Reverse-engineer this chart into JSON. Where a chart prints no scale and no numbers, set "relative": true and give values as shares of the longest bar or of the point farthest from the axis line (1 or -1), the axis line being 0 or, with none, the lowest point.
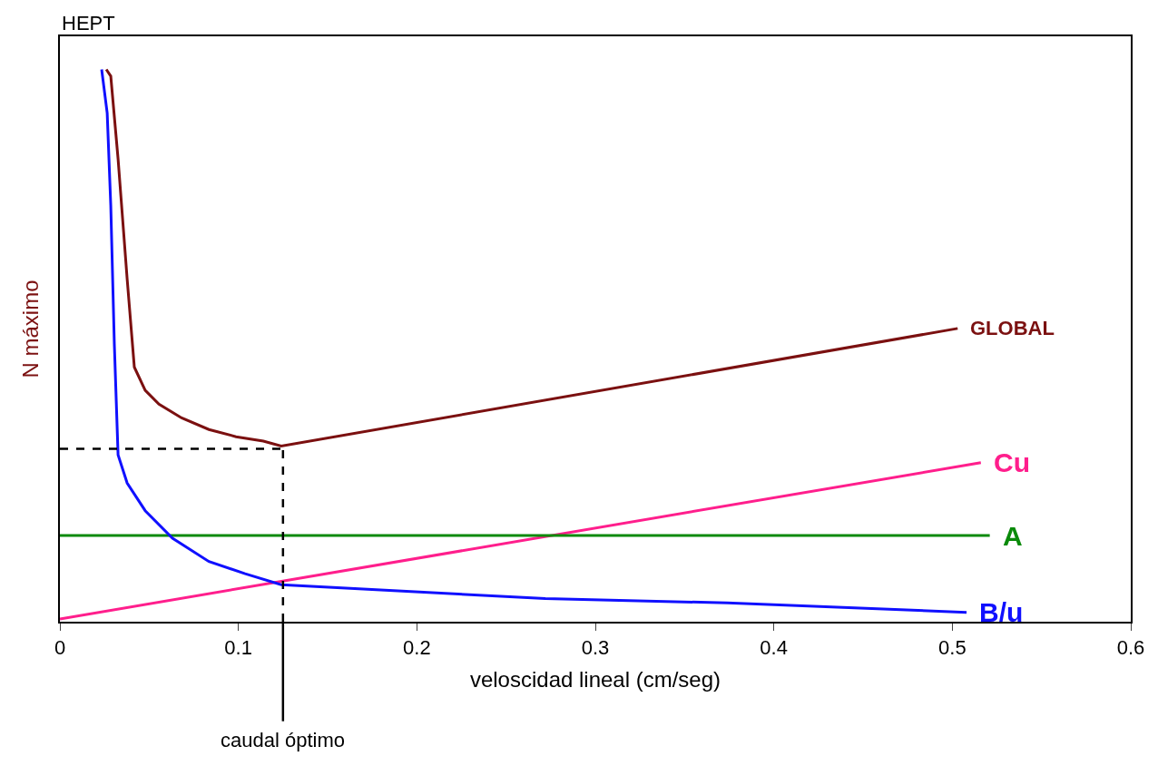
{
  "chart_data": {
    "type": "line",
    "relative": true,
    "xlabel": "veloscidad lineal (cm/seg)",
    "ylabel": "N máximo",
    "xlim": [
      0,
      0.6
    ],
    "xticks": [
      0,
      0.1,
      0.2,
      0.3,
      0.4,
      0.5,
      0.6
    ],
    "legend": false,
    "marker": "none",
    "line_style": "solid",
    "series": [
      {
        "name": "GLOBAL",
        "color": "#7b1010",
        "x": [
          0.026,
          0.0285,
          0.0326,
          0.0377,
          0.0417,
          0.0478,
          0.0555,
          0.0682,
          0.0835,
          0.0987,
          0.114,
          0.124,
          0.503
        ],
        "values": [
          1.0,
          0.988,
          0.838,
          0.62,
          0.461,
          0.419,
          0.394,
          0.369,
          0.348,
          0.335,
          0.327,
          0.318,
          0.531
        ]
      },
      {
        "name": "Cu",
        "color": "#ff1e8c",
        "x": [
          0,
          0.516
        ],
        "values": [
          0.005,
          0.288
        ]
      },
      {
        "name": "A",
        "color": "#0a8a0a",
        "x": [
          0,
          0.521
        ],
        "values": [
          0.156,
          0.156
        ]
      },
      {
        "name": "B/u",
        "color": "#1010ff",
        "x": [
          0.0234,
          0.0265,
          0.0285,
          0.0305,
          0.0326,
          0.0377,
          0.0478,
          0.0631,
          0.0835,
          0.1038,
          0.124,
          0.17,
          0.272,
          0.374,
          0.508
        ],
        "values": [
          1.0,
          0.921,
          0.754,
          0.503,
          0.302,
          0.251,
          0.201,
          0.151,
          0.109,
          0.087,
          0.067,
          0.059,
          0.042,
          0.034,
          0.017
        ]
      }
    ],
    "ref_lines": [
      {
        "axis": "x",
        "value": 0.125,
        "label": "caudal óptimo",
        "line_style": "dashed",
        "color": "#000000"
      },
      {
        "axis": "y",
        "value": 0.313,
        "line_style": "dashed",
        "color": "#000000"
      }
    ],
    "annotations": [
      "HEPT"
    ]
  }
}
